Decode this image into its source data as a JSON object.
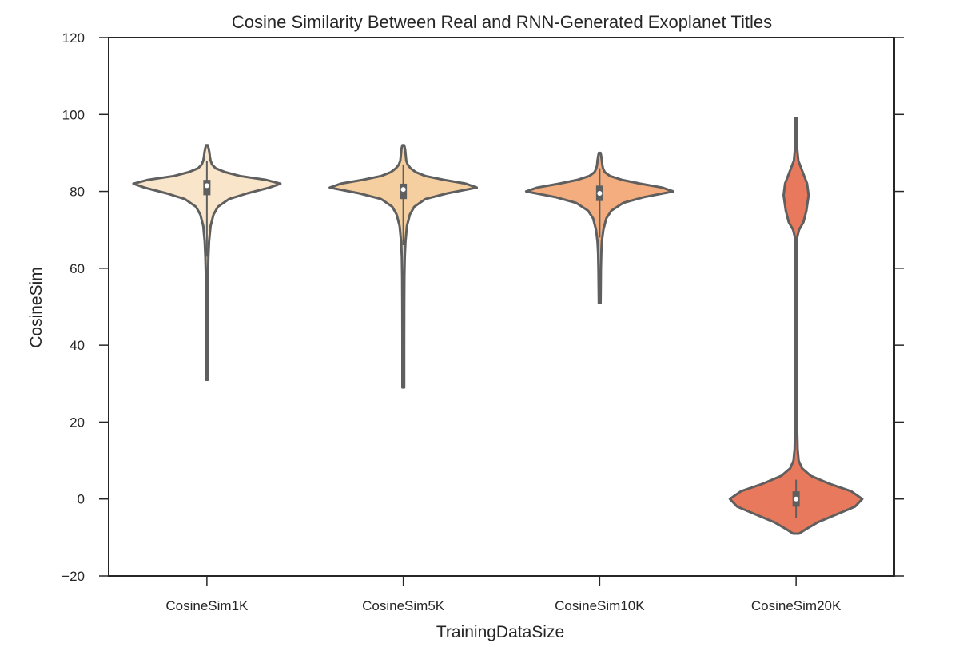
{
  "chart_data": {
    "type": "violin",
    "title": "Cosine Similarity Between Real and RNN-Generated Exoplanet Titles",
    "xlabel": "TrainingDataSize",
    "ylabel": "CosineSim",
    "categories": [
      "CosineSim1K",
      "CosineSim5K",
      "CosineSim10K",
      "CosineSim20K"
    ],
    "ylim": [
      -20,
      120
    ],
    "yticks": [
      -20,
      0,
      20,
      40,
      60,
      80,
      100,
      120
    ],
    "ytick_labels": [
      "−20",
      "0",
      "20",
      "40",
      "60",
      "80",
      "100",
      "120"
    ],
    "grid": false,
    "edge_color": "#5f5f5f",
    "series": [
      {
        "category": "CosineSim1K",
        "color": "#f9e5c9",
        "median": 81.5,
        "q1": 79,
        "q3": 83,
        "whisker_low": 63,
        "whisker_high": 88,
        "range": [
          31,
          92
        ],
        "density": [
          [
            31,
            0.012
          ],
          [
            40,
            0.012
          ],
          [
            50,
            0.012
          ],
          [
            58,
            0.014
          ],
          [
            63,
            0.02
          ],
          [
            67,
            0.03
          ],
          [
            71,
            0.05
          ],
          [
            74,
            0.09
          ],
          [
            76,
            0.15
          ],
          [
            78,
            0.3
          ],
          [
            79.5,
            0.55
          ],
          [
            81,
            0.85
          ],
          [
            82,
            1.0
          ],
          [
            83,
            0.8
          ],
          [
            84,
            0.45
          ],
          [
            85,
            0.25
          ],
          [
            86,
            0.12
          ],
          [
            87,
            0.07
          ],
          [
            88,
            0.05
          ],
          [
            89,
            0.04
          ],
          [
            90,
            0.035
          ],
          [
            91,
            0.025
          ],
          [
            92,
            0.012
          ]
        ]
      },
      {
        "category": "CosineSim5K",
        "color": "#f5cf9f",
        "median": 80.5,
        "q1": 78,
        "q3": 82,
        "whisker_low": 66,
        "whisker_high": 87,
        "range": [
          29,
          92
        ],
        "density": [
          [
            29,
            0.012
          ],
          [
            40,
            0.012
          ],
          [
            50,
            0.013
          ],
          [
            58,
            0.015
          ],
          [
            63,
            0.02
          ],
          [
            67,
            0.03
          ],
          [
            71,
            0.05
          ],
          [
            74,
            0.09
          ],
          [
            76,
            0.15
          ],
          [
            78,
            0.3
          ],
          [
            79.5,
            0.6
          ],
          [
            81,
            1.0
          ],
          [
            82,
            0.85
          ],
          [
            83,
            0.55
          ],
          [
            84,
            0.3
          ],
          [
            85,
            0.17
          ],
          [
            86,
            0.1
          ],
          [
            87,
            0.06
          ],
          [
            88,
            0.04
          ],
          [
            90,
            0.03
          ],
          [
            91,
            0.025
          ],
          [
            92,
            0.012
          ]
        ]
      },
      {
        "category": "CosineSim10K",
        "color": "#f4ad7e",
        "median": 79.5,
        "q1": 77.5,
        "q3": 81.5,
        "whisker_low": 68,
        "whisker_high": 86,
        "range": [
          51,
          90
        ],
        "density": [
          [
            51,
            0.012
          ],
          [
            55,
            0.014
          ],
          [
            60,
            0.017
          ],
          [
            64,
            0.022
          ],
          [
            67,
            0.03
          ],
          [
            70,
            0.05
          ],
          [
            73,
            0.09
          ],
          [
            75,
            0.16
          ],
          [
            77,
            0.32
          ],
          [
            78.5,
            0.6
          ],
          [
            80,
            1.0
          ],
          [
            81,
            0.85
          ],
          [
            82,
            0.55
          ],
          [
            83,
            0.3
          ],
          [
            84,
            0.14
          ],
          [
            85,
            0.07
          ],
          [
            86,
            0.045
          ],
          [
            87,
            0.035
          ],
          [
            88,
            0.03
          ],
          [
            89,
            0.022
          ],
          [
            90,
            0.012
          ]
        ]
      },
      {
        "category": "CosineSim20K",
        "color": "#e8795c",
        "median": 0,
        "q1": -2,
        "q3": 2,
        "whisker_low": -5,
        "whisker_high": 5,
        "range": [
          -9,
          99
        ],
        "density": [
          [
            -9,
            0.04
          ],
          [
            -8,
            0.12
          ],
          [
            -6,
            0.3
          ],
          [
            -4,
            0.55
          ],
          [
            -2,
            0.8
          ],
          [
            0,
            0.9
          ],
          [
            2,
            0.75
          ],
          [
            4,
            0.45
          ],
          [
            6,
            0.2
          ],
          [
            8,
            0.08
          ],
          [
            10,
            0.035
          ],
          [
            13,
            0.02
          ],
          [
            20,
            0.012
          ],
          [
            40,
            0.012
          ],
          [
            60,
            0.012
          ],
          [
            68,
            0.015
          ],
          [
            70,
            0.04
          ],
          [
            72,
            0.1
          ],
          [
            75,
            0.14
          ],
          [
            79,
            0.17
          ],
          [
            82,
            0.15
          ],
          [
            85,
            0.09
          ],
          [
            88,
            0.03
          ],
          [
            91,
            0.015
          ],
          [
            95,
            0.012
          ],
          [
            99,
            0.01
          ]
        ]
      }
    ]
  }
}
